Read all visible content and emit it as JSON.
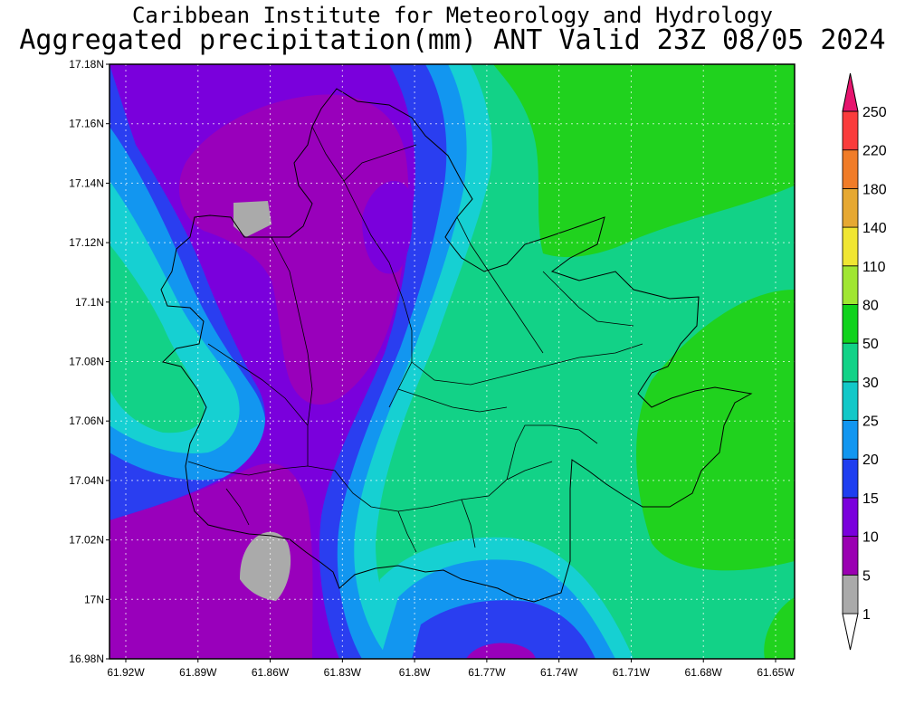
{
  "header": {
    "institute": "Caribbean Institute for Meteorology and Hydrology",
    "product": "Aggregated precipitation(mm) ANT Valid 23Z 08/05 2024"
  },
  "map": {
    "region": "ANT",
    "x_ticks": [
      "61.92W",
      "61.89W",
      "61.86W",
      "61.83W",
      "61.8W",
      "61.77W",
      "61.74W",
      "61.71W",
      "61.68W",
      "61.65W"
    ],
    "y_ticks": [
      "17.18N",
      "17.16N",
      "17.14N",
      "17.12N",
      "17.1N",
      "17.08N",
      "17.06N",
      "17.04N",
      "17.02N",
      "17N",
      "16.98N"
    ],
    "grid": true,
    "colors": {
      "1-5": "#aaaaaa",
      "5-10": "#9900bb",
      "10-15": "#7a00dc",
      "15-20": "#2a3ef0",
      "20-25": "#12a0f2",
      "25-30": "#16d0d2",
      "30-50": "#12d287",
      "50-80": "#20d21e"
    }
  },
  "colorbar": {
    "labels": [
      "1",
      "5",
      "10",
      "15",
      "20",
      "25",
      "30",
      "50",
      "80",
      "110",
      "140",
      "180",
      "220",
      "250"
    ],
    "colors": [
      "#aaaaaa",
      "#9a00b2",
      "#7a00dc",
      "#1e3ef0",
      "#1296f0",
      "#12c8c8",
      "#12d287",
      "#10d21c",
      "#a0e632",
      "#f0e632",
      "#e6a832",
      "#f07c28",
      "#fa3c3c",
      "#e6146e"
    ]
  }
}
